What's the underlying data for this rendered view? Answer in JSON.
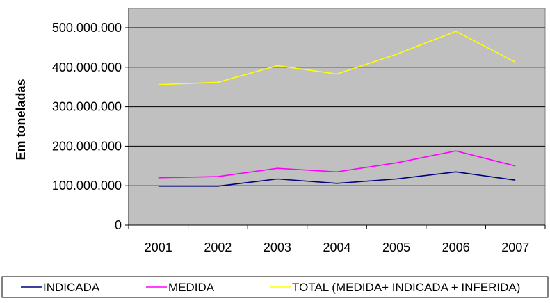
{
  "chart_data": {
    "type": "line",
    "title": "",
    "xlabel": "",
    "ylabel": "Em toneladas",
    "categories": [
      "2001",
      "2002",
      "2003",
      "2004",
      "2005",
      "2006",
      "2007"
    ],
    "ylim": [
      0,
      500000000
    ],
    "yticks": [
      0,
      100000000,
      200000000,
      300000000,
      400000000,
      500000000
    ],
    "ytick_labels": [
      "0",
      "100.000.000",
      "200.000.000",
      "300.000.000",
      "400.000.000",
      "500.000.000"
    ],
    "grid": true,
    "plot_background": "#c0c0c0",
    "legend_position": "bottom",
    "series": [
      {
        "name": "INDICADA",
        "color": "#000080",
        "values": [
          99000000,
          99000000,
          117000000,
          106000000,
          117000000,
          135000000,
          114000000
        ]
      },
      {
        "name": "MEDIDA",
        "color": "#ff00ff",
        "values": [
          120000000,
          123000000,
          144000000,
          135000000,
          158000000,
          188000000,
          150000000
        ]
      },
      {
        "name": "TOTAL (MEDIDA+ INDICADA + INFERIDA)",
        "color": "#ffff00",
        "values": [
          356000000,
          362000000,
          404000000,
          383000000,
          433000000,
          491000000,
          413000000
        ]
      }
    ]
  }
}
